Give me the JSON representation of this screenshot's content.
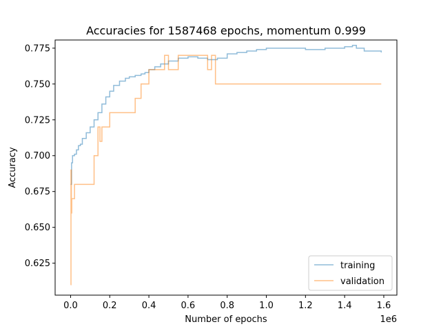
{
  "chart_data": {
    "type": "line",
    "title": "Accuracies for 1587468 epochs, momentum 0.999",
    "xlabel": "Number of epochs",
    "ylabel": "Accuracy",
    "x_offset_label": "1e6",
    "xlim": [
      -0.079,
      1.667
    ],
    "ylim": [
      0.6027,
      0.7807
    ],
    "x_ticks": [
      0.0,
      0.2,
      0.4,
      0.6,
      0.8,
      1.0,
      1.2,
      1.4,
      1.6
    ],
    "x_tick_labels": [
      "0.0",
      "0.2",
      "0.4",
      "0.6",
      "0.8",
      "1.0",
      "1.2",
      "1.4",
      "1.6"
    ],
    "y_ticks": [
      0.625,
      0.65,
      0.675,
      0.7,
      0.725,
      0.75,
      0.775
    ],
    "y_tick_labels": [
      "0.625",
      "0.650",
      "0.675",
      "0.700",
      "0.725",
      "0.750",
      "0.775"
    ],
    "grid": false,
    "legend_position": "lower-right",
    "series": [
      {
        "name": "training",
        "color": "#1f77b4",
        "x": [
          0.0,
          0.005,
          0.01,
          0.02,
          0.03,
          0.04,
          0.05,
          0.06,
          0.08,
          0.1,
          0.12,
          0.14,
          0.16,
          0.18,
          0.2,
          0.22,
          0.25,
          0.28,
          0.3,
          0.33,
          0.36,
          0.38,
          0.4,
          0.43,
          0.46,
          0.5,
          0.55,
          0.6,
          0.65,
          0.7,
          0.75,
          0.8,
          0.85,
          0.9,
          0.95,
          1.0,
          1.05,
          1.1,
          1.2,
          1.3,
          1.4,
          1.44,
          1.46,
          1.5,
          1.587
        ],
        "y": [
          0.68,
          0.695,
          0.7,
          0.701,
          0.704,
          0.707,
          0.708,
          0.712,
          0.716,
          0.72,
          0.725,
          0.73,
          0.736,
          0.741,
          0.745,
          0.749,
          0.752,
          0.754,
          0.755,
          0.756,
          0.757,
          0.758,
          0.76,
          0.762,
          0.764,
          0.766,
          0.768,
          0.769,
          0.768,
          0.767,
          0.768,
          0.771,
          0.772,
          0.773,
          0.774,
          0.775,
          0.775,
          0.775,
          0.774,
          0.775,
          0.776,
          0.777,
          0.775,
          0.773,
          0.772
        ]
      },
      {
        "name": "validation",
        "color": "#ff7f0e",
        "x": [
          0.0,
          0.002,
          0.004,
          0.006,
          0.01,
          0.02,
          0.04,
          0.06,
          0.08,
          0.1,
          0.12,
          0.14,
          0.15,
          0.16,
          0.18,
          0.2,
          0.25,
          0.3,
          0.33,
          0.36,
          0.4,
          0.45,
          0.48,
          0.5,
          0.55,
          0.6,
          0.65,
          0.7,
          0.72,
          0.74,
          0.76,
          0.8,
          0.9,
          1.0,
          1.1,
          1.2,
          1.3,
          1.4,
          1.5,
          1.587
        ],
        "y": [
          0.61,
          0.69,
          0.66,
          0.67,
          0.67,
          0.68,
          0.68,
          0.68,
          0.68,
          0.68,
          0.7,
          0.72,
          0.71,
          0.72,
          0.72,
          0.73,
          0.73,
          0.73,
          0.74,
          0.75,
          0.76,
          0.76,
          0.77,
          0.76,
          0.77,
          0.77,
          0.77,
          0.76,
          0.77,
          0.75,
          0.75,
          0.75,
          0.75,
          0.75,
          0.75,
          0.75,
          0.75,
          0.75,
          0.75,
          0.75
        ]
      }
    ]
  }
}
